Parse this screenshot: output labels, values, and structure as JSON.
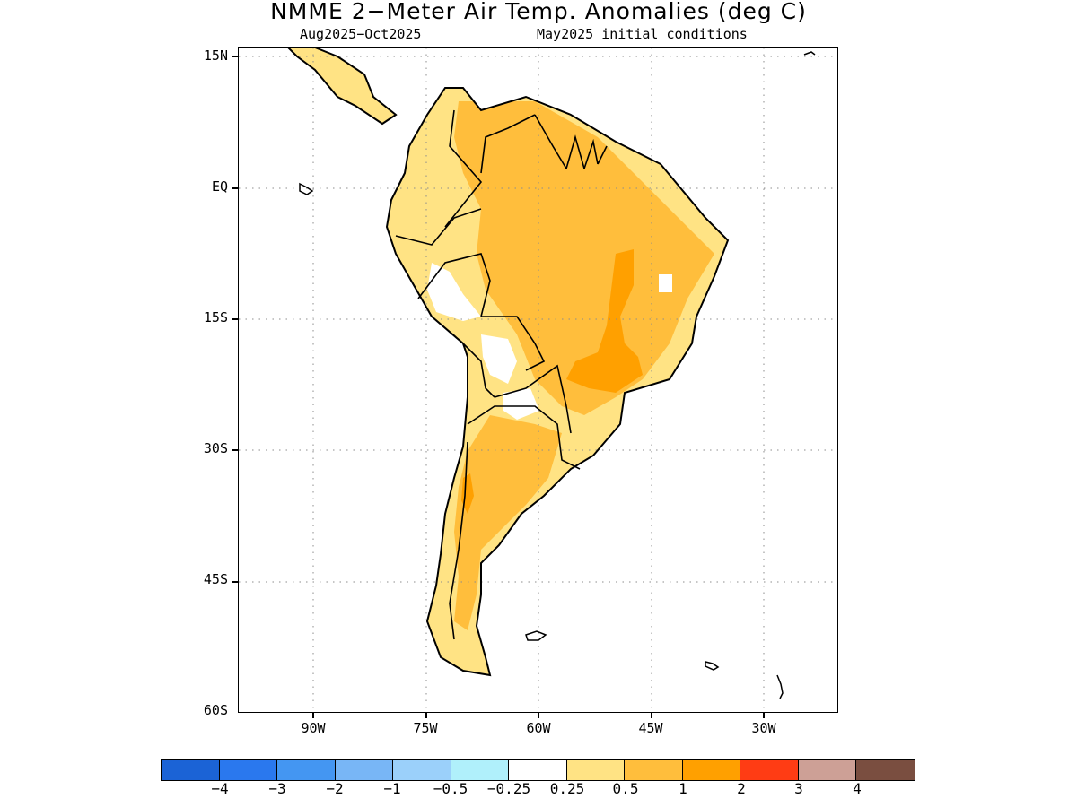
{
  "title": "NMME 2-Meter Air Temp. Anomalies (deg C)",
  "subtitle_left": "Aug2025-Oct2025",
  "subtitle_right": "May2025 initial conditions",
  "map": {
    "lat_labels": [
      "15N",
      "EQ",
      "15S",
      "30S",
      "45S",
      "60S"
    ],
    "lon_labels": [
      "90W",
      "75W",
      "60W",
      "45W",
      "30W"
    ],
    "gridlines": "dotted",
    "extent": {
      "lon_min": -100,
      "lon_max": -20,
      "lat_min": -60,
      "lat_max": 16
    }
  },
  "colors": {
    "anomaly_0_25_to_0_5": "#ffe384",
    "anomaly_0_5_to_1": "#ffbe3c",
    "anomaly_1_to_2": "#ffa000",
    "near_zero": "#ffffff",
    "coast": "#000000"
  },
  "colorbar": {
    "colors": [
      "#1b63d6",
      "#2a78ee",
      "#4496f2",
      "#78b6f6",
      "#9bd0fa",
      "#b0f0fb",
      "#ffffff",
      "#ffe384",
      "#ffbe3c",
      "#ffa000",
      "#ff3c14",
      "#cda096",
      "#7a4e40"
    ],
    "labels": [
      "-4",
      "-3",
      "-2",
      "-1",
      "-0.5",
      "-0.25",
      "0.25",
      "0.5",
      "1",
      "2",
      "3",
      "4"
    ]
  }
}
